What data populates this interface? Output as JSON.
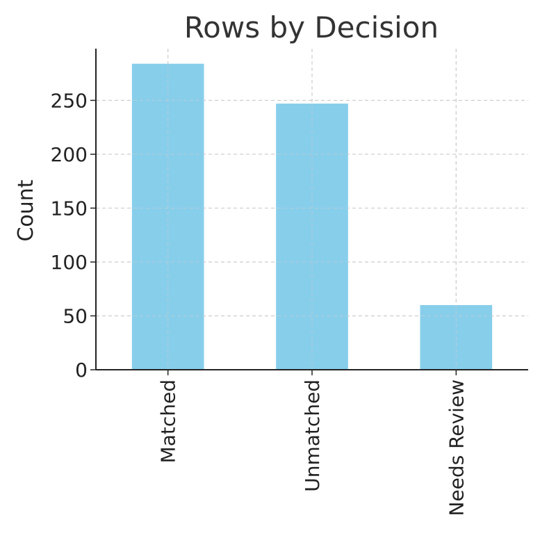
{
  "chart_data": {
    "type": "bar",
    "title": "Rows by Decision",
    "xlabel": "",
    "ylabel": "Count",
    "categories": [
      "Matched",
      "Unmatched",
      "Needs Review"
    ],
    "values": [
      284,
      247,
      60
    ],
    "ylim": [
      0,
      298
    ],
    "yticks": [
      0,
      50,
      100,
      150,
      200,
      250
    ],
    "grid": true,
    "legend": "none",
    "bar_color": "#87CEEB",
    "axis_color": "#222222",
    "grid_color": "#cccccc",
    "text_color": "#333333"
  }
}
